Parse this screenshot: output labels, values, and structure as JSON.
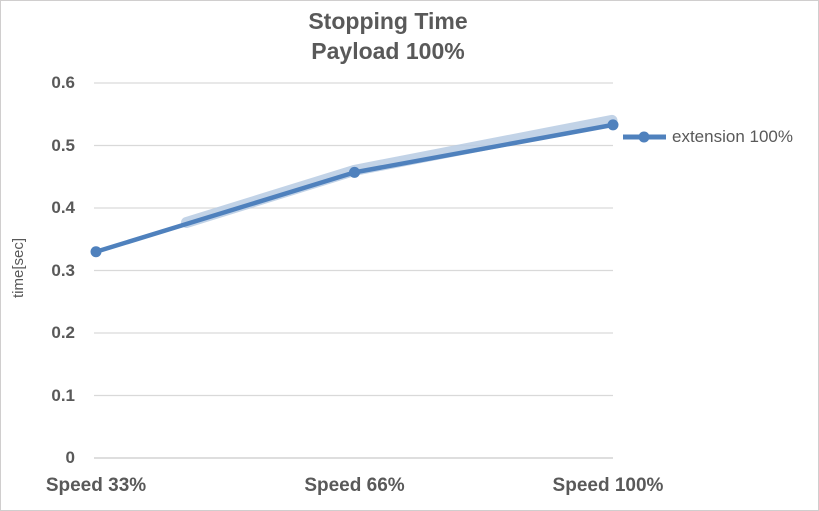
{
  "chart_data": {
    "type": "line",
    "title": "Stopping Time",
    "subtitle": "Payload 100%",
    "categories": [
      "Speed 33%",
      "Speed 66%",
      "Speed 100%"
    ],
    "series": [
      {
        "name": "extension 100%",
        "values": [
          0.33,
          0.457,
          0.533
        ]
      }
    ],
    "xlabel": "",
    "ylabel": "time[sec]",
    "ylim": [
      0,
      0.6
    ],
    "yticks": [
      0,
      0.1,
      0.2,
      0.3,
      0.4,
      0.5,
      0.6
    ],
    "ytick_labels": [
      "0",
      "0.1",
      "0.2",
      "0.3",
      "0.4",
      "0.5",
      "0.6"
    ],
    "grid": true,
    "legend_position": "right",
    "marker": "circle"
  },
  "colors": {
    "series_line": "#4f81bd",
    "series_halo": "#b7cbe3",
    "gridline": "#d9d9d9",
    "axis_zero_line": "#cbcbcb",
    "text": "#595959",
    "chart_border": "#d0cece",
    "background": "#ffffff"
  }
}
